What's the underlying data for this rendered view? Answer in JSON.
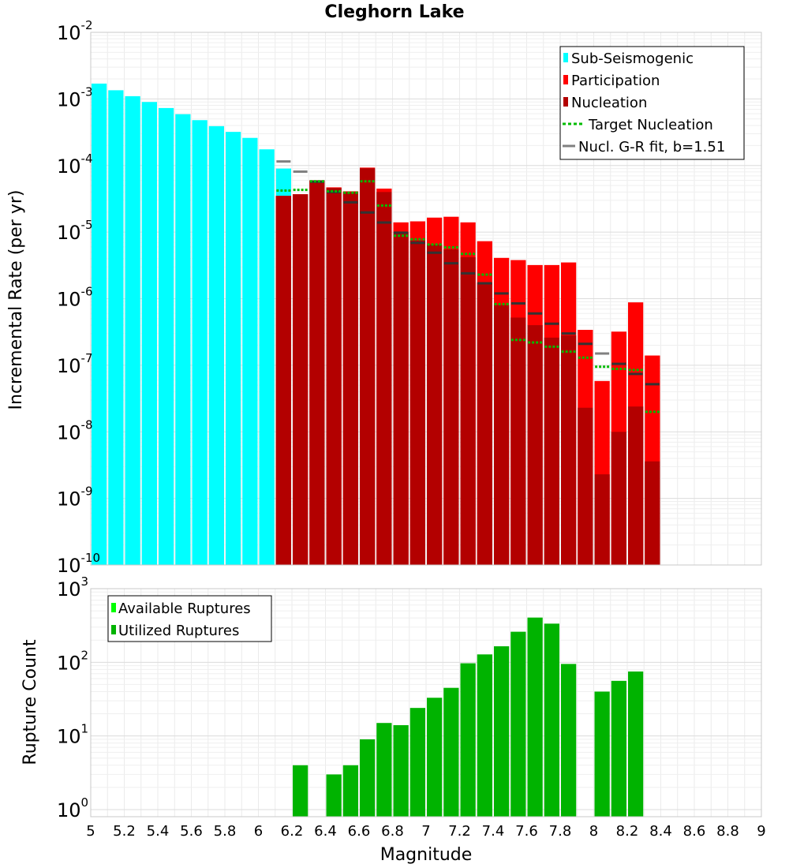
{
  "chart_data": [
    {
      "type": "bar",
      "title": "Cleghorn Lake",
      "xlabel": "",
      "ylabel": "Incremental Rate (per yr)",
      "xlim": [
        5,
        9
      ],
      "ylim": [
        1e-10,
        0.01
      ],
      "yscale": "log",
      "grid": true,
      "legend_position": "top-right",
      "legend": [
        "Sub-Seismogenic",
        "Participation",
        "Nucleation",
        "Target Nucleation",
        "Nucl. G-R fit, b=1.51"
      ],
      "colors": {
        "sub": "#00ffff",
        "participation": "#ff0000",
        "nucleation": "#b30000",
        "target": "#00bb00",
        "gr_fit": "#808080",
        "gr_fit_overlap": "#333333"
      },
      "ytick_labels": [
        {
          "base": "10",
          "exp": "-2"
        },
        {
          "base": "10",
          "exp": "-3"
        },
        {
          "base": "10",
          "exp": "-4"
        },
        {
          "base": "10",
          "exp": "-5"
        },
        {
          "base": "10",
          "exp": "-6"
        },
        {
          "base": "10",
          "exp": "-7"
        },
        {
          "base": "10",
          "exp": "-8"
        },
        {
          "base": "10",
          "exp": "-9"
        },
        {
          "base": "10",
          "exp": "-10"
        }
      ],
      "sub_seismogenic": {
        "x": [
          5.05,
          5.15,
          5.25,
          5.35,
          5.45,
          5.55,
          5.65,
          5.75,
          5.85,
          5.95,
          6.05,
          6.15
        ],
        "values": [
          0.0017,
          0.00135,
          0.0011,
          0.0009,
          0.00073,
          0.00059,
          0.00048,
          0.00039,
          0.00032,
          0.00026,
          0.000175,
          9e-05
        ]
      },
      "participation": {
        "x": [
          6.15,
          6.25,
          6.35,
          6.45,
          6.55,
          6.65,
          6.75,
          6.85,
          6.95,
          7.05,
          7.15,
          7.25,
          7.35,
          7.45,
          7.55,
          7.65,
          7.75,
          7.85,
          7.95,
          8.05,
          8.15,
          8.25,
          8.35
        ],
        "values": [
          3.5e-05,
          3.7e-05,
          6e-05,
          4.7e-05,
          4.1e-05,
          9.3e-05,
          4.5e-05,
          1.4e-05,
          1.45e-05,
          1.65e-05,
          1.7e-05,
          1.4e-05,
          7.3e-06,
          4.1e-06,
          3.8e-06,
          3.2e-06,
          3.2e-06,
          3.5e-06,
          3.4e-07,
          5.8e-08,
          3.2e-07,
          8.8e-07,
          1.4e-07
        ]
      },
      "nucleation": {
        "x": [
          6.15,
          6.25,
          6.35,
          6.45,
          6.55,
          6.65,
          6.75,
          6.85,
          6.95,
          7.05,
          7.15,
          7.25,
          7.35,
          7.45,
          7.55,
          7.65,
          7.75,
          7.85,
          7.95,
          8.05,
          8.15,
          8.25,
          8.35
        ],
        "values": [
          3.5e-05,
          3.7e-05,
          6e-05,
          4.6e-05,
          4e-05,
          9.1e-05,
          4e-05,
          1e-05,
          7.5e-06,
          6.5e-06,
          5.5e-06,
          4.2e-06,
          1.75e-06,
          8e-07,
          5.2e-07,
          4e-07,
          2.6e-07,
          2.8e-07,
          2.3e-08,
          2.3e-09,
          1e-08,
          2.4e-08,
          3.6e-09
        ]
      },
      "target_nucleation": {
        "x": [
          6.15,
          6.25,
          6.35,
          6.45,
          6.55,
          6.65,
          6.75,
          6.85,
          6.95,
          7.05,
          7.15,
          7.25,
          7.35,
          7.45,
          7.55,
          7.65,
          7.75,
          7.85,
          7.95,
          8.05,
          8.15,
          8.25,
          8.35
        ],
        "values": [
          4.2e-05,
          4.3e-05,
          5.8e-05,
          4.1e-05,
          3.9e-05,
          5.8e-05,
          2.5e-05,
          8.8e-06,
          7.8e-06,
          6.5e-06,
          5.9e-06,
          4.7e-06,
          2.3e-06,
          8.3e-07,
          2.4e-07,
          2.2e-07,
          1.9e-07,
          1.6e-07,
          1.3e-07,
          9.5e-08,
          8.8e-08,
          8.5e-08,
          2e-08
        ]
      },
      "gr_fit": {
        "x": [
          6.15,
          6.25,
          6.35,
          6.45,
          6.55,
          6.65,
          6.75,
          6.85,
          6.95,
          7.05,
          7.15,
          7.25,
          7.35,
          7.45,
          7.55,
          7.65,
          7.75,
          7.85,
          7.95,
          8.05,
          8.15,
          8.25,
          8.35
        ],
        "values": [
          0.000115,
          8.1e-05,
          5.7e-05,
          4e-05,
          2.8e-05,
          1.97e-05,
          1.39e-05,
          9.8e-06,
          6.9e-06,
          4.9e-06,
          3.4e-06,
          2.4e-06,
          1.7e-06,
          1.2e-06,
          8.5e-07,
          6e-07,
          4.2e-07,
          3e-07,
          2.1e-07,
          1.5e-07,
          1.05e-07,
          7.4e-08,
          5.2e-08
        ]
      }
    },
    {
      "type": "bar",
      "title": "",
      "xlabel": "Magnitude",
      "ylabel": "Rupture Count",
      "xlim": [
        5,
        9
      ],
      "ylim": [
        0.8,
        1000
      ],
      "yscale": "log",
      "grid": true,
      "legend_position": "top-left",
      "legend": [
        "Available Ruptures",
        "Utilized Ruptures"
      ],
      "colors": {
        "available": "#00ff00",
        "utilized": "#00b300"
      },
      "xtick_labels": [
        "5",
        "5.2",
        "5.4",
        "5.6",
        "5.8",
        "6",
        "6.2",
        "6.4",
        "6.6",
        "6.8",
        "7",
        "7.2",
        "7.4",
        "7.6",
        "7.8",
        "8",
        "8.2",
        "8.4",
        "8.6",
        "8.8",
        "9"
      ],
      "ytick_labels": [
        {
          "base": "10",
          "exp": "3"
        },
        {
          "base": "10",
          "exp": "2"
        },
        {
          "base": "10",
          "exp": "1"
        },
        {
          "base": "10",
          "exp": "0"
        }
      ],
      "utilized": {
        "x": [
          6.25,
          6.45,
          6.55,
          6.65,
          6.75,
          6.85,
          6.95,
          7.05,
          7.15,
          7.25,
          7.35,
          7.45,
          7.55,
          7.65,
          7.75,
          7.85,
          8.05,
          8.15,
          8.25
        ],
        "values": [
          4,
          3,
          4,
          9,
          15,
          14,
          24,
          33,
          45,
          97,
          128,
          165,
          260,
          405,
          335,
          95,
          40,
          56,
          75
        ]
      }
    }
  ]
}
